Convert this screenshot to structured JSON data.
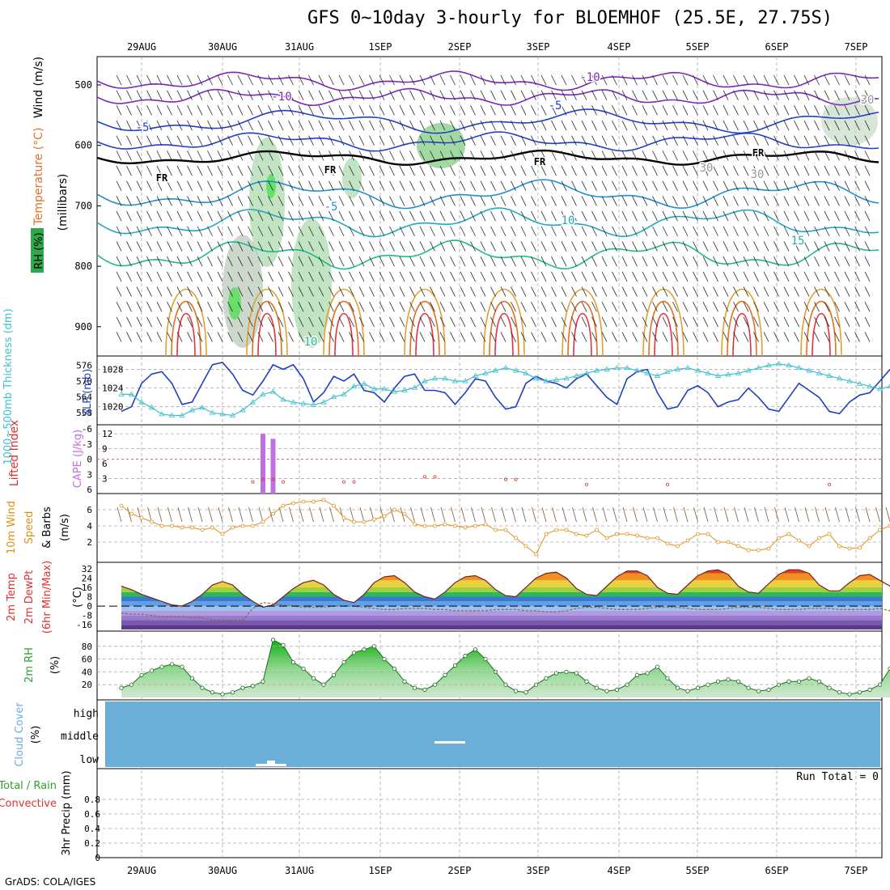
{
  "title": "GFS 0~10day 3-hourly for BLOEMHOF (25.5E, 27.75S)",
  "credit": "GrADS: COLA/IGES",
  "dates": [
    "29AUG",
    "30AUG",
    "31AUG",
    "1SEP",
    "2SEP",
    "3SEP",
    "4SEP",
    "5SEP",
    "6SEP",
    "7SEP"
  ],
  "colors": {
    "sounding_temp": "#e0702a",
    "wind_label": "#000000",
    "rh_label": "#2ea84a",
    "slp": "#1f3fc0",
    "thickness": "#3fbfcf",
    "lifted_index": "#e03030",
    "cape": "#c070e0",
    "wind10": "#e0901a",
    "barb": "#7a5a3a",
    "rh2m": "#2ea02e",
    "cloud": "#6baed6",
    "precip_total": "#2ea02e",
    "precip_conv": "#e03030",
    "dewpt": "#8a6a4a"
  },
  "panels": {
    "sounding": {
      "ylabel_wind": "Wind (m/s)",
      "ylabel_temp": "Temperature (°C)",
      "ylabel_rh": "RH (%)",
      "ylabel_mb": "(millibars)",
      "yticks": [
        "500",
        "600",
        "700",
        "800",
        "900"
      ],
      "contour_labels": [
        "-10",
        "-10",
        "-5",
        "-5",
        "-5",
        "FR",
        "FR",
        "FR",
        "FR",
        "10",
        "15",
        "10",
        "30",
        "30",
        "30"
      ]
    },
    "slp": {
      "ylabel_thick": "1000~500mb Thickness (dm)",
      "ylabel_slp": "SLP (mb)",
      "left_ticks": [
        "576",
        "570",
        "564",
        "558"
      ],
      "right_ticks": [
        "1028",
        "1024",
        "1020"
      ]
    },
    "cape": {
      "ylabel_li": "Lifted Index",
      "ylabel_cape": "CAPE (J/kg)",
      "left_ticks": [
        "-6",
        "-3",
        "0",
        "3",
        "6"
      ],
      "right_ticks": [
        "12",
        "9",
        "6",
        "3"
      ]
    },
    "wind10": {
      "ylabel_1": "10m Wind",
      "ylabel_2": "Speed",
      "ylabel_3": "& Barbs",
      "ylabel_unit": "(m/s)",
      "ticks": [
        "6",
        "4",
        "2"
      ]
    },
    "temp2m": {
      "ylabel_1": "2m Temp",
      "ylabel_2": "2m DewPt",
      "ylabel_3": "(6hr Min/Max)",
      "ylabel_unit": "(°C)",
      "ticks": [
        "32",
        "24",
        "16",
        "8",
        "0",
        "-8",
        "-16"
      ]
    },
    "rh2m": {
      "ylabel": "2m RH",
      "ylabel_unit": "(%)",
      "ticks": [
        "80",
        "60",
        "40",
        "20"
      ]
    },
    "cloud": {
      "ylabel": "Cloud Cover",
      "ylabel_unit": "(%)",
      "levels": [
        "high",
        "middle",
        "low"
      ]
    },
    "precip": {
      "ylabel_1": "Total / Rain",
      "ylabel_2": "Convective",
      "ylabel_3": "3hr Precip (mm)",
      "ticks": [
        "0.8",
        "0.6",
        "0.4",
        "0.2",
        "0"
      ],
      "run_total": "Run Total = 0"
    }
  },
  "chart_data": [
    {
      "type": "line",
      "name": "slp",
      "x": [
        "28AUG18",
        "28AUG21",
        "29AUG00",
        "29AUG03",
        "29AUG06",
        "29AUG09",
        "29AUG12",
        "29AUG15",
        "29AUG18",
        "29AUG21",
        "30AUG00",
        "30AUG03",
        "30AUG06",
        "30AUG09",
        "30AUG12",
        "30AUG15",
        "30AUG18",
        "30AUG21",
        "31AUG00",
        "31AUG03",
        "31AUG06",
        "31AUG09",
        "31AUG12",
        "31AUG15",
        "31AUG18",
        "31AUG21",
        "1SEP00",
        "1SEP03",
        "1SEP06",
        "1SEP09",
        "1SEP12",
        "1SEP15",
        "1SEP18",
        "1SEP21",
        "2SEP00",
        "2SEP03",
        "2SEP06",
        "2SEP09",
        "2SEP12",
        "2SEP15",
        "2SEP18",
        "2SEP21",
        "3SEP00",
        "3SEP03",
        "3SEP06",
        "3SEP09",
        "3SEP12",
        "3SEP15",
        "3SEP18",
        "3SEP21",
        "4SEP00",
        "4SEP03",
        "4SEP06",
        "4SEP09",
        "4SEP12",
        "4SEP15",
        "4SEP18",
        "4SEP21",
        "5SEP00",
        "5SEP03",
        "5SEP06",
        "5SEP09",
        "5SEP12",
        "5SEP15",
        "5SEP18",
        "5SEP21",
        "6SEP00",
        "6SEP03",
        "6SEP06",
        "6SEP09",
        "6SEP12",
        "6SEP15",
        "6SEP18",
        "6SEP21",
        "7SEP00",
        "7SEP03",
        "7SEP06"
      ],
      "series": [
        {
          "name": "SLP (mb)",
          "values": [
            1019,
            1020,
            1025,
            1027,
            1027.5,
            1025,
            1020.5,
            1021,
            1025,
            1029,
            1029.5,
            1027,
            1023.5,
            1022.5,
            1025.5,
            1029,
            1028,
            1029,
            1026,
            1021,
            1023,
            1026.5,
            1025.5,
            1027,
            1023.5,
            1023,
            1021,
            1024,
            1026.5,
            1027,
            1023.5,
            1023.5,
            1023,
            1020.5,
            1023,
            1026,
            1025.5,
            1022,
            1019.5,
            1020,
            1025,
            1026.5,
            1025.5,
            1025,
            1024,
            1026,
            1027,
            1024.5,
            1022,
            1020.5,
            1026,
            1027.5,
            1028,
            1023,
            1019.5,
            1020,
            1023.5,
            1024.5,
            1023,
            1020,
            1021,
            1021.5,
            1024,
            1022,
            1019.5,
            1019,
            1022,
            1025,
            1023.5,
            1022,
            1019,
            1018.5,
            1021,
            1022.5,
            1023,
            1025.5,
            1028
          ]
        },
        {
          "name": "Thickness (dm)",
          "values": [
            565,
            565,
            562,
            560,
            557.5,
            557,
            557,
            559,
            560,
            558,
            557.5,
            557,
            559,
            562,
            565,
            566,
            563,
            562,
            561.5,
            561,
            562,
            564,
            565,
            568,
            569,
            567,
            567,
            566,
            566.5,
            567.5,
            570,
            571,
            571,
            570,
            570,
            572,
            573,
            574,
            575,
            574,
            573,
            571,
            570,
            570.5,
            571,
            572,
            573,
            574,
            574.5,
            575,
            575,
            574,
            573,
            572,
            573.5,
            574.5,
            575,
            574,
            573,
            572,
            572.5,
            573,
            574,
            575,
            576,
            576.5,
            576,
            575,
            574,
            573,
            572,
            571,
            570,
            569,
            568,
            567,
            568
          ]
        }
      ],
      "ylim_slp": [
        1017,
        1030
      ],
      "ylim_thickness": [
        555,
        578
      ]
    },
    {
      "type": "bar",
      "name": "cape_li",
      "series": [
        {
          "name": "CAPE (J/kg)",
          "x": [
            "30AUG12",
            "30AUG15"
          ],
          "values": [
            12,
            11
          ]
        },
        {
          "name": "Lifted Index",
          "x": [
            "30AUG09",
            "30AUG12",
            "30AUG15",
            "30AUG18",
            "31AUG12",
            "31AUG15",
            "1SEP12",
            "1SEP15",
            "2SEP12",
            "2SEP15",
            "3SEP12",
            "4SEP12",
            "6SEP12"
          ],
          "values": [
            4.5,
            4,
            4,
            4.5,
            4.5,
            4.5,
            3.5,
            3.5,
            4,
            4,
            5,
            5,
            5
          ]
        }
      ],
      "ylim_cape": [
        0,
        13
      ],
      "ylim_li": [
        6,
        -6
      ]
    },
    {
      "type": "line",
      "name": "wind10",
      "x_start": "28AUG18",
      "x_step_hours": 3,
      "series": [
        {
          "name": "10m Wind Speed (m/s)",
          "values": [
            6.5,
            5.5,
            5,
            4.5,
            4,
            4,
            3.8,
            3.8,
            3.5,
            3.8,
            3,
            3.8,
            4,
            4,
            4.5,
            5.5,
            6.5,
            6.8,
            7,
            7,
            7.2,
            6.5,
            5,
            4.5,
            4.5,
            4.8,
            5.2,
            6,
            5.5,
            4.2,
            4,
            4,
            4.2,
            4,
            3.8,
            4,
            4.2,
            3.5,
            3.5,
            2.5,
            1.5,
            0.5,
            3,
            3.5,
            3.5,
            3,
            2.8,
            3.5,
            2.5,
            3,
            3,
            2.8,
            2.5,
            2.5,
            1.8,
            1.5,
            2.2,
            3,
            3,
            2,
            2,
            1.5,
            1,
            1,
            1.2,
            2.5,
            3,
            2.2,
            1.5,
            2.5,
            3,
            1.5,
            1.2,
            1.3,
            2.5,
            3.5,
            4
          ]
        }
      ],
      "ylim": [
        0,
        7.5
      ]
    },
    {
      "type": "area",
      "name": "temp2m",
      "x_start": "28AUG18",
      "x_step_hours": 3,
      "series": [
        {
          "name": "2m Temp (°C)",
          "values": [
            17,
            14,
            10,
            7,
            4,
            1,
            0,
            4,
            10,
            18,
            21,
            18,
            10,
            4,
            -1,
            1,
            8,
            15,
            20,
            22,
            18,
            10,
            5,
            3,
            10,
            20,
            25,
            26,
            20,
            12,
            8,
            6,
            12,
            20,
            25,
            26,
            22,
            14,
            9,
            8,
            16,
            24,
            28,
            29,
            24,
            15,
            10,
            9,
            17,
            25,
            30,
            30,
            26,
            16,
            11,
            10,
            18,
            26,
            30,
            31,
            27,
            17,
            12,
            11,
            19,
            27,
            31,
            31,
            28,
            18,
            13,
            13,
            20,
            26,
            27,
            22,
            17
          ]
        },
        {
          "name": "2m DewPt (°C)",
          "values": [
            -6,
            -7,
            -7,
            -8,
            -9,
            -9,
            -9,
            -10,
            -10,
            -12,
            -12,
            -12,
            -12,
            -2,
            3,
            2,
            1,
            0,
            -1,
            -1,
            -1,
            0,
            0,
            0,
            -1,
            -2,
            -3,
            -3,
            -2,
            -2,
            -2,
            -3,
            -3,
            -4,
            -4,
            -4,
            -4,
            -3,
            -3,
            -3,
            -4,
            -4,
            -5,
            -5,
            -4,
            -2,
            -1,
            -1,
            -2,
            -3,
            -3,
            -3,
            -2,
            -1,
            -1,
            -1,
            -2,
            -3,
            -3,
            -3,
            -2,
            -1,
            -1,
            -1,
            -2,
            -3,
            -3,
            -3,
            -2,
            -2,
            -2,
            -3,
            -3,
            -3,
            -3,
            -2,
            -4
          ]
        }
      ],
      "ylim": [
        -20,
        36
      ]
    },
    {
      "type": "area",
      "name": "rh2m",
      "x_start": "28AUG18",
      "x_step_hours": 3,
      "series": [
        {
          "name": "2m RH (%)",
          "values": [
            15,
            20,
            35,
            42,
            48,
            52,
            48,
            30,
            15,
            8,
            5,
            8,
            15,
            18,
            25,
            90,
            82,
            55,
            45,
            30,
            20,
            35,
            55,
            70,
            75,
            80,
            60,
            45,
            25,
            15,
            12,
            20,
            35,
            50,
            65,
            75,
            60,
            40,
            20,
            10,
            8,
            20,
            30,
            38,
            40,
            38,
            25,
            15,
            10,
            12,
            20,
            35,
            38,
            48,
            30,
            15,
            10,
            15,
            20,
            25,
            28,
            25,
            15,
            10,
            12,
            20,
            25,
            25,
            30,
            25,
            15,
            8,
            5,
            8,
            12,
            20,
            45
          ]
        }
      ],
      "ylim": [
        0,
        100
      ]
    },
    {
      "type": "bar",
      "name": "precip3hr",
      "series": [
        {
          "name": "3hr Precip (mm)",
          "values": []
        }
      ],
      "ylim": [
        0,
        1
      ]
    }
  ]
}
